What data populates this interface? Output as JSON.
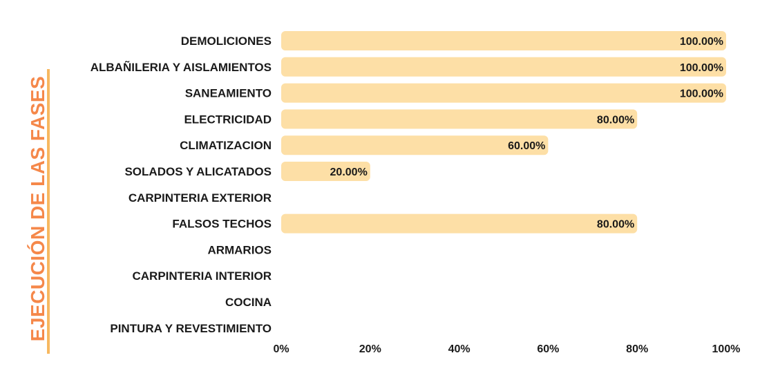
{
  "chart_data": {
    "type": "bar",
    "orientation": "horizontal",
    "title": "EJECUCIÓN DE LAS FASES",
    "categories": [
      "DEMOLICIONES",
      "ALBAÑILERIA Y AISLAMIENTOS",
      "SANEAMIENTO",
      "ELECTRICIDAD",
      "CLIMATIZACION",
      "SOLADOS Y ALICATADOS",
      "CARPINTERIA EXTERIOR",
      "FALSOS TECHOS",
      "ARMARIOS",
      "CARPINTERIA INTERIOR",
      "COCINA",
      "PINTURA Y REVESTIMIENTO"
    ],
    "values": [
      100,
      100,
      100,
      80,
      60,
      20,
      0,
      80,
      0,
      0,
      0,
      0
    ],
    "value_labels": [
      "100.00%",
      "100.00%",
      "100.00%",
      "80.00%",
      "60.00%",
      "20.00%",
      "",
      "80.00%",
      "",
      "",
      "",
      ""
    ],
    "xlim": [
      0,
      100
    ],
    "xticks": [
      "0%",
      "20%",
      "40%",
      "60%",
      "80%",
      "100%"
    ],
    "grid": false,
    "colors": {
      "bar": "#fddfa6",
      "title": "#f5884a",
      "title_underline": "#f7b860",
      "text": "#1a1a1a"
    }
  }
}
